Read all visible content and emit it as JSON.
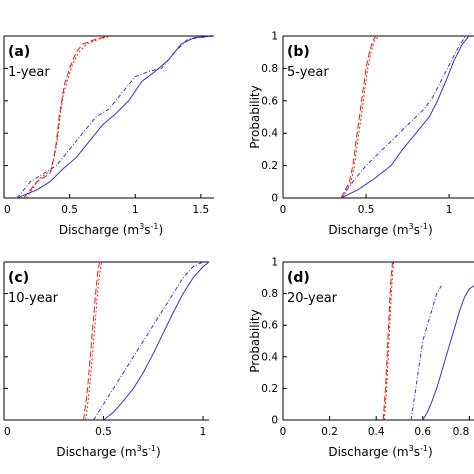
{
  "colors": {
    "red": "#e41a1c",
    "blue": "#3333cc",
    "axis": "#000000"
  },
  "chart_data": [
    {
      "type": "line",
      "panel": "(a)",
      "period": "1-year",
      "xlabel_main": "Discharge (m",
      "xlabel_sup1": "3",
      "xlabel_mid": "s",
      "xlabel_sup2": "-1",
      "xlabel_end": ")",
      "ylabel": "",
      "xlim": [
        0,
        1.6
      ],
      "ylim": [
        0,
        1
      ],
      "xticks": [
        0,
        0.5,
        1,
        1.5
      ],
      "xtick_labels": [
        "0",
        "0.5",
        "1",
        "1.5"
      ],
      "yticks": [
        0,
        0.2,
        0.4,
        0.6,
        0.8,
        1
      ],
      "ytick_labels": [],
      "series": [
        {
          "color": "red",
          "dash": "6,3",
          "x": [
            0.15,
            0.25,
            0.35,
            0.38,
            0.4,
            0.42,
            0.44,
            0.46,
            0.5,
            0.55,
            0.6,
            0.7,
            0.8
          ],
          "y": [
            0,
            0.1,
            0.15,
            0.25,
            0.35,
            0.5,
            0.6,
            0.7,
            0.8,
            0.9,
            0.95,
            0.98,
            1
          ]
        },
        {
          "color": "red",
          "dash": "2,2",
          "x": [
            0.17,
            0.27,
            0.36,
            0.39,
            0.41,
            0.43,
            0.45,
            0.48,
            0.52,
            0.57,
            0.63,
            0.72,
            0.82
          ],
          "y": [
            0,
            0.12,
            0.17,
            0.28,
            0.38,
            0.52,
            0.63,
            0.72,
            0.82,
            0.9,
            0.95,
            0.98,
            1
          ]
        },
        {
          "color": "blue",
          "dash": "4,2,1,2",
          "x": [
            0.1,
            0.2,
            0.3,
            0.4,
            0.5,
            0.6,
            0.7,
            0.8,
            0.9,
            1.0,
            1.1,
            1.2,
            1.3,
            1.4,
            1.6
          ],
          "y": [
            0,
            0.1,
            0.15,
            0.2,
            0.3,
            0.4,
            0.5,
            0.55,
            0.65,
            0.75,
            0.78,
            0.8,
            0.9,
            0.98,
            1
          ]
        },
        {
          "color": "blue",
          "dash": "1,0",
          "x": [
            0.1,
            0.25,
            0.35,
            0.45,
            0.55,
            0.65,
            0.75,
            0.85,
            0.95,
            1.05,
            1.15,
            1.25,
            1.35,
            1.45,
            1.6
          ],
          "y": [
            0,
            0.05,
            0.1,
            0.18,
            0.25,
            0.35,
            0.45,
            0.52,
            0.6,
            0.72,
            0.78,
            0.85,
            0.95,
            0.99,
            1
          ]
        }
      ]
    },
    {
      "type": "line",
      "panel": "(b)",
      "period": "5-year",
      "xlabel_main": "Discharge (m",
      "xlabel_sup1": "3",
      "xlabel_mid": "s",
      "xlabel_sup2": "-1",
      "xlabel_end": ")",
      "ylabel": "Probability",
      "xlim": [
        0,
        1.15
      ],
      "ylim": [
        0,
        1
      ],
      "xticks": [
        0,
        0.5,
        1
      ],
      "xtick_labels": [
        "0",
        "0.5",
        "1"
      ],
      "yticks": [
        0,
        0.2,
        0.4,
        0.6,
        0.8,
        1
      ],
      "ytick_labels": [
        "0",
        "0.2",
        "0.4",
        "0.6",
        "0.8",
        "1"
      ],
      "series": [
        {
          "color": "red",
          "dash": "6,3",
          "x": [
            0.35,
            0.4,
            0.42,
            0.44,
            0.46,
            0.48,
            0.5,
            0.52,
            0.54,
            0.56
          ],
          "y": [
            0,
            0.1,
            0.2,
            0.35,
            0.5,
            0.65,
            0.8,
            0.9,
            0.97,
            1
          ]
        },
        {
          "color": "red",
          "dash": "2,2",
          "x": [
            0.36,
            0.41,
            0.43,
            0.45,
            0.47,
            0.49,
            0.51,
            0.53,
            0.55,
            0.58
          ],
          "y": [
            0,
            0.1,
            0.2,
            0.35,
            0.5,
            0.65,
            0.8,
            0.9,
            0.97,
            1
          ]
        },
        {
          "color": "blue",
          "dash": "4,2,1,2",
          "x": [
            0.35,
            0.42,
            0.5,
            0.6,
            0.7,
            0.78,
            0.85,
            0.9,
            0.95,
            1.0,
            1.05,
            1.1
          ],
          "y": [
            0,
            0.1,
            0.2,
            0.3,
            0.4,
            0.48,
            0.55,
            0.62,
            0.72,
            0.82,
            0.92,
            1
          ]
        },
        {
          "color": "blue",
          "dash": "1,0",
          "x": [
            0.35,
            0.45,
            0.55,
            0.65,
            0.72,
            0.8,
            0.88,
            0.93,
            0.98,
            1.03,
            1.08,
            1.12
          ],
          "y": [
            0,
            0.05,
            0.12,
            0.2,
            0.3,
            0.4,
            0.5,
            0.6,
            0.72,
            0.85,
            0.95,
            1
          ]
        }
      ]
    },
    {
      "type": "line",
      "panel": "(c)",
      "period": "10-year",
      "xlabel_main": "Discharge (m",
      "xlabel_sup1": "3",
      "xlabel_mid": "s",
      "xlabel_sup2": "-1",
      "xlabel_end": ")",
      "ylabel": "",
      "xlim": [
        0,
        1.03
      ],
      "ylim": [
        0,
        1
      ],
      "xticks": [
        0,
        0.5,
        1
      ],
      "xtick_labels": [
        "0",
        "0.5",
        "1"
      ],
      "yticks": [
        0,
        0.2,
        0.4,
        0.6,
        0.8,
        1
      ],
      "ytick_labels": [],
      "series": [
        {
          "color": "red",
          "dash": "6,3",
          "x": [
            0.4,
            0.41,
            0.42,
            0.43,
            0.44,
            0.45,
            0.46,
            0.47,
            0.48
          ],
          "y": [
            0,
            0.1,
            0.2,
            0.35,
            0.5,
            0.65,
            0.8,
            0.92,
            1
          ]
        },
        {
          "color": "red",
          "dash": "2,2",
          "x": [
            0.41,
            0.42,
            0.43,
            0.44,
            0.45,
            0.46,
            0.47,
            0.48,
            0.49
          ],
          "y": [
            0,
            0.1,
            0.2,
            0.35,
            0.5,
            0.65,
            0.8,
            0.92,
            1
          ]
        },
        {
          "color": "blue",
          "dash": "4,2,1,2",
          "x": [
            0.45,
            0.5,
            0.55,
            0.6,
            0.65,
            0.7,
            0.75,
            0.8,
            0.85,
            0.9,
            0.95,
            1.0
          ],
          "y": [
            0,
            0.1,
            0.2,
            0.3,
            0.4,
            0.5,
            0.6,
            0.7,
            0.8,
            0.9,
            0.97,
            1
          ]
        },
        {
          "color": "blue",
          "dash": "1,0",
          "x": [
            0.5,
            0.55,
            0.6,
            0.65,
            0.7,
            0.75,
            0.8,
            0.85,
            0.9,
            0.95,
            1.0,
            1.03
          ],
          "y": [
            0,
            0.05,
            0.12,
            0.2,
            0.3,
            0.42,
            0.55,
            0.68,
            0.8,
            0.9,
            0.97,
            1
          ]
        }
      ]
    },
    {
      "type": "line",
      "panel": "(d)",
      "period": "20-year",
      "xlabel_main": "Discharge (m",
      "xlabel_sup1": "3",
      "xlabel_mid": "s",
      "xlabel_sup2": "-1",
      "xlabel_end": ")",
      "ylabel": "Probability",
      "xlim": [
        0,
        0.82
      ],
      "ylim": [
        0,
        1
      ],
      "xticks": [
        0,
        0.2,
        0.4,
        0.6,
        0.8
      ],
      "xtick_labels": [
        "0",
        "0.2",
        "0.4",
        "0.6",
        "0.8"
      ],
      "yticks": [
        0,
        0.2,
        0.4,
        0.6,
        0.8,
        1
      ],
      "ytick_labels": [
        "0",
        "0.2",
        "0.4",
        "0.6",
        "0.8",
        "1"
      ],
      "series": [
        {
          "color": "red",
          "dash": "6,3",
          "x": [
            0.43,
            0.435,
            0.44,
            0.445,
            0.45,
            0.455,
            0.46,
            0.465,
            0.47
          ],
          "y": [
            0,
            0.1,
            0.2,
            0.35,
            0.5,
            0.65,
            0.8,
            0.92,
            1
          ]
        },
        {
          "color": "red",
          "dash": "2,2",
          "x": [
            0.435,
            0.44,
            0.445,
            0.45,
            0.455,
            0.46,
            0.465,
            0.47,
            0.475
          ],
          "y": [
            0,
            0.1,
            0.2,
            0.35,
            0.5,
            0.65,
            0.8,
            0.92,
            1
          ]
        },
        {
          "color": "blue",
          "dash": "4,2,1,2",
          "x": [
            0.55,
            0.56,
            0.57,
            0.58,
            0.59,
            0.6,
            0.62,
            0.64,
            0.66,
            0.68
          ],
          "y": [
            0,
            0.1,
            0.2,
            0.3,
            0.4,
            0.5,
            0.6,
            0.7,
            0.8,
            0.85
          ]
        },
        {
          "color": "blue",
          "dash": "1,0",
          "x": [
            0.6,
            0.62,
            0.64,
            0.66,
            0.68,
            0.7,
            0.72,
            0.74,
            0.76,
            0.78,
            0.8,
            0.82
          ],
          "y": [
            0,
            0.05,
            0.12,
            0.2,
            0.3,
            0.4,
            0.5,
            0.6,
            0.7,
            0.78,
            0.83,
            0.85
          ]
        }
      ]
    }
  ]
}
